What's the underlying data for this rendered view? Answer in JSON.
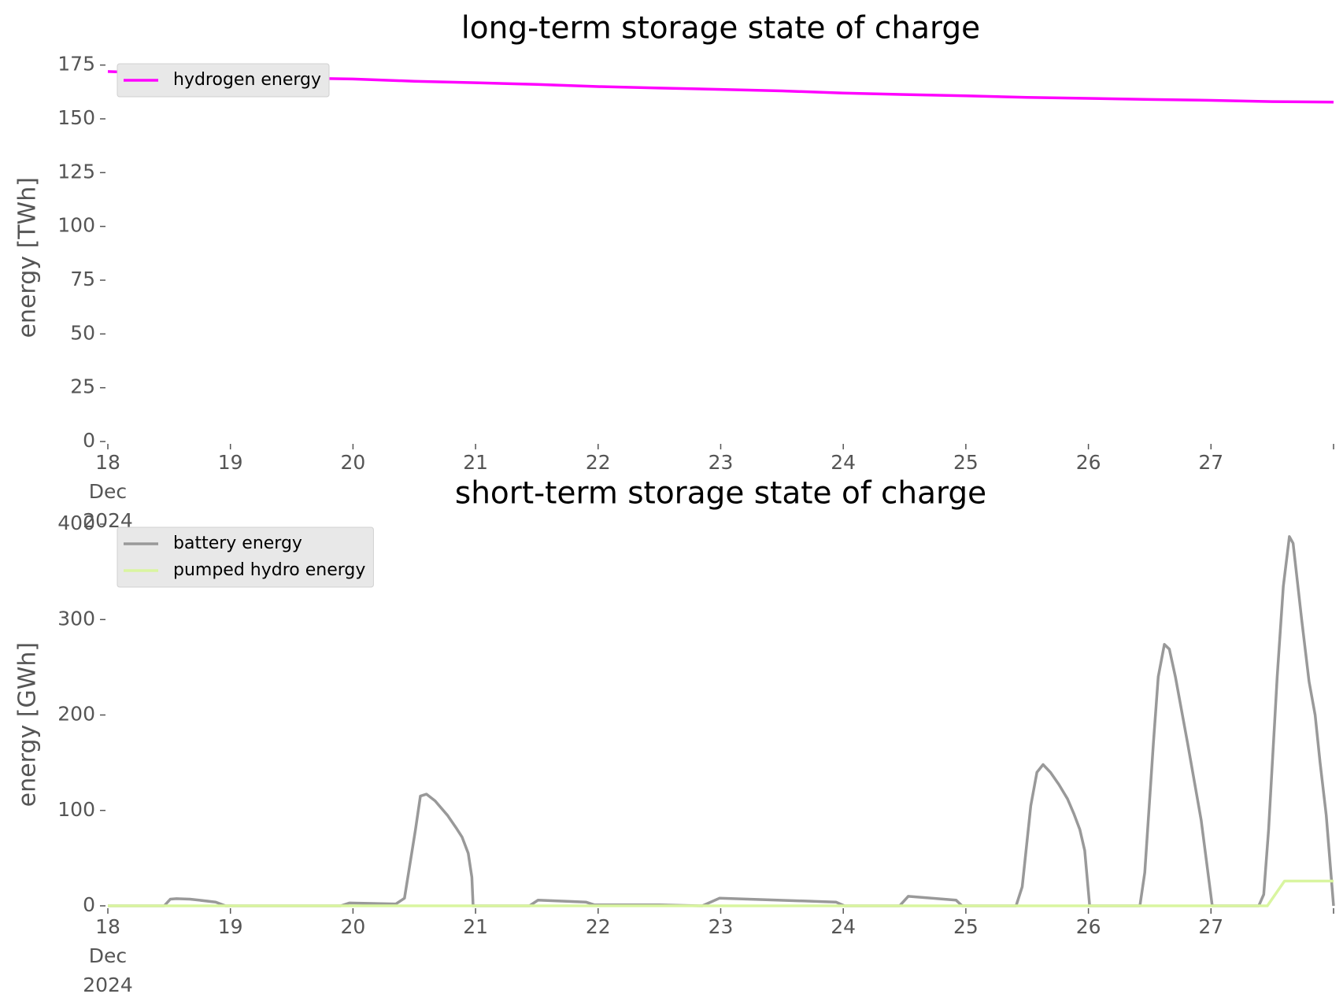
{
  "chart_data": [
    {
      "type": "line",
      "title": "long-term storage state of charge",
      "ylabel": "energy [TWh]",
      "xlim": [
        18,
        28
      ],
      "xticks": [
        {
          "value": 18,
          "label": "18\nDec\n2024"
        },
        19,
        20,
        21,
        22,
        23,
        24,
        25,
        26,
        27,
        {
          "value": 28,
          "label": ""
        }
      ],
      "ylim": [
        0,
        180
      ],
      "yticks": [
        0,
        25,
        50,
        75,
        100,
        125,
        150,
        175
      ],
      "grid": false,
      "legend": "upper left",
      "series": [
        {
          "name": "hydrogen energy",
          "color": "#ff00ff",
          "x": [
            18,
            18.5,
            19,
            19.5,
            20,
            20.5,
            21,
            21.5,
            22,
            22.5,
            23,
            23.5,
            24,
            24.5,
            25,
            25.5,
            26,
            26.5,
            27,
            27.5,
            28
          ],
          "values": [
            172,
            171,
            170,
            169,
            168.5,
            167.5,
            166.8,
            166,
            165,
            164.3,
            163.7,
            163,
            162,
            161.3,
            160.7,
            160,
            159.5,
            159,
            158.6,
            158,
            157.8
          ]
        }
      ]
    },
    {
      "type": "line",
      "title": "short-term storage state of charge",
      "ylabel": "energy [GWh]",
      "xlim": [
        18,
        28
      ],
      "xticks": [
        {
          "value": 18,
          "label": "18\nDec\n2024"
        },
        19,
        20,
        21,
        22,
        23,
        24,
        25,
        26,
        27,
        {
          "value": 28,
          "label": ""
        }
      ],
      "ylim": [
        0,
        400
      ],
      "yticks": [
        0,
        100,
        200,
        300,
        400
      ],
      "grid": false,
      "legend": "upper left",
      "series": [
        {
          "name": "battery energy",
          "color": "#999999",
          "x": [
            18,
            18.46,
            18.51,
            18.56,
            18.67,
            18.88,
            18.96,
            19.9,
            19.97,
            20.35,
            20.42,
            20.51,
            20.55,
            20.6,
            20.67,
            20.77,
            20.84,
            20.89,
            20.94,
            20.97,
            20.98,
            21.44,
            21.51,
            21.9,
            21.97,
            22.5,
            22.85,
            22.99,
            23.94,
            24.01,
            24.46,
            24.53,
            24.92,
            24.97,
            25.41,
            25.46,
            25.53,
            25.58,
            25.63,
            25.69,
            25.76,
            25.83,
            25.88,
            25.93,
            25.97,
            26.01,
            26.42,
            26.46,
            26.53,
            26.57,
            26.62,
            26.66,
            26.71,
            26.81,
            26.92,
            27.01,
            27.39,
            27.43,
            27.47,
            27.54,
            27.59,
            27.64,
            27.67,
            27.74,
            27.8,
            27.85,
            27.89,
            27.94,
            28
          ],
          "values": [
            0,
            0,
            7,
            7.5,
            7,
            4,
            0,
            0,
            3,
            2,
            8,
            80,
            115,
            117,
            110,
            95,
            82,
            72,
            55,
            30,
            0,
            0,
            6,
            4,
            1,
            1,
            0,
            8,
            4,
            0,
            0,
            10,
            6,
            0,
            0,
            20,
            105,
            140,
            148,
            140,
            127,
            112,
            97,
            80,
            58,
            0,
            0,
            35,
            170,
            240,
            274,
            269,
            240,
            170,
            90,
            0,
            0,
            12,
            80,
            240,
            335,
            387,
            380,
            300,
            235,
            200,
            150,
            95,
            0
          ]
        },
        {
          "name": "pumped hydro energy",
          "color": "#d9f5a0",
          "x": [
            18,
            27.46,
            27.6,
            28
          ],
          "values": [
            0,
            0,
            26,
            26
          ]
        }
      ]
    }
  ]
}
